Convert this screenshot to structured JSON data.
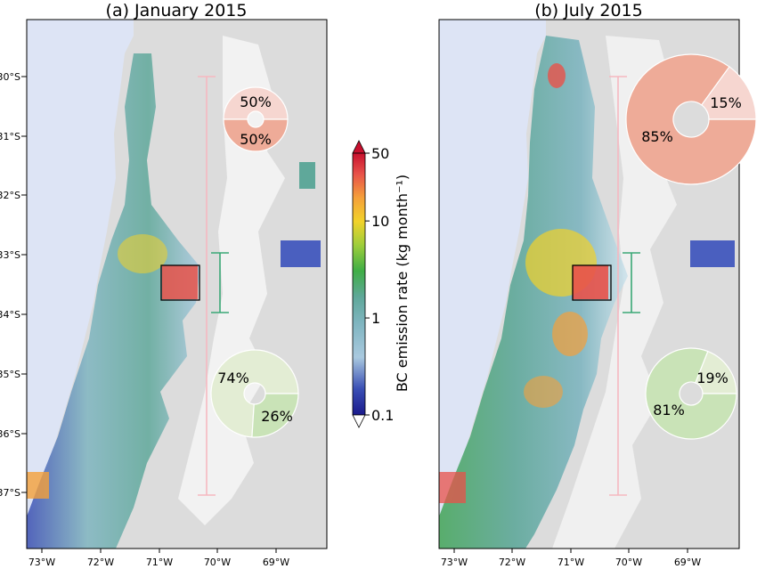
{
  "panels": [
    {
      "title": "(a) January 2015",
      "lat_labels": [
        "30°S",
        "31°S",
        "32°S",
        "33°S",
        "34°S",
        "35°S",
        "36°S",
        "37°S"
      ],
      "lon_labels": [
        "73°W",
        "72°W",
        "71°W",
        "70°W",
        "69°W"
      ],
      "pie_upper": {
        "labels": [
          "50%",
          "50%"
        ],
        "values": [
          50,
          50
        ],
        "colors": [
          "#f6d6d0",
          "#eeab98"
        ]
      },
      "pie_lower": {
        "labels": [
          "74%",
          "26%"
        ],
        "values": [
          74,
          26
        ],
        "colors": [
          "#e3edd4",
          "#c9e3b7"
        ]
      }
    },
    {
      "title": "(b) July 2015",
      "lat_labels": [],
      "lon_labels": [
        "73°W",
        "72°W",
        "71°W",
        "70°W",
        "69°W"
      ],
      "pie_upper": {
        "labels": [
          "15%",
          "85%"
        ],
        "values": [
          15,
          85
        ],
        "colors": [
          "#f6d6d0",
          "#eeab98"
        ]
      },
      "pie_lower": {
        "labels": [
          "19%",
          "81%"
        ],
        "values": [
          19,
          81
        ],
        "colors": [
          "#e3edd4",
          "#c9e3b7"
        ]
      }
    }
  ],
  "colorbar": {
    "label": "BC emission rate (kg month⁻¹)",
    "ticks": [
      "50",
      "10",
      "1",
      "0.1"
    ],
    "range": [
      0.1,
      50
    ],
    "scale": "log",
    "colors": [
      "#1a1a8c",
      "#4a5fbf",
      "#a9c9df",
      "#5fa89a",
      "#3fae46",
      "#9fce3a",
      "#f2d22a",
      "#f5a03a",
      "#e8524a",
      "#c8102e"
    ]
  },
  "map_colors": {
    "ocean": "#dde4f5",
    "land": "#dcdcdc",
    "pink_bar": "#f6b8c0",
    "green_bar": "#3aa876",
    "box": "#000000"
  }
}
